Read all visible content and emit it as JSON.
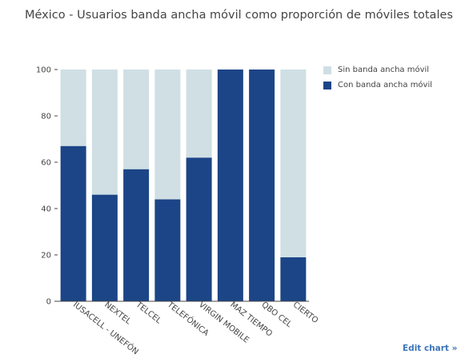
{
  "title": "México - Usuarios banda ancha móvil como proporción de móviles totales",
  "edit_link": "Edit chart »",
  "colors": {
    "with_broadband": "#1c4587",
    "without_broadband": "#cfdfe4",
    "axis": "#444444"
  },
  "chart_data": {
    "type": "bar",
    "stacked": true,
    "title": "México - Usuarios banda ancha móvil como proporción de móviles totales",
    "xlabel": "",
    "ylabel": "",
    "ylim": [
      0,
      100
    ],
    "yticks": [
      0,
      20,
      40,
      60,
      80,
      100
    ],
    "grid": false,
    "legend": "top-right",
    "categories": [
      "IUSACELL - UNEFÓN",
      "NEXTEL",
      "TELCEL",
      "TELEFÓNICA",
      "VIRGIN MOBILE",
      "MAZ TIEMPO",
      "QBO CEL",
      "CIERTO"
    ],
    "series": [
      {
        "name": "Con banda ancha móvil",
        "color": "#1c4587",
        "values": [
          67,
          46,
          57,
          44,
          62,
          100,
          100,
          19
        ]
      },
      {
        "name": "Sin banda ancha móvil",
        "color": "#cfdfe4",
        "values": [
          33,
          54,
          43,
          56,
          38,
          0,
          0,
          81
        ]
      }
    ],
    "legend_order": [
      "Sin banda ancha móvil",
      "Con banda ancha móvil"
    ]
  }
}
